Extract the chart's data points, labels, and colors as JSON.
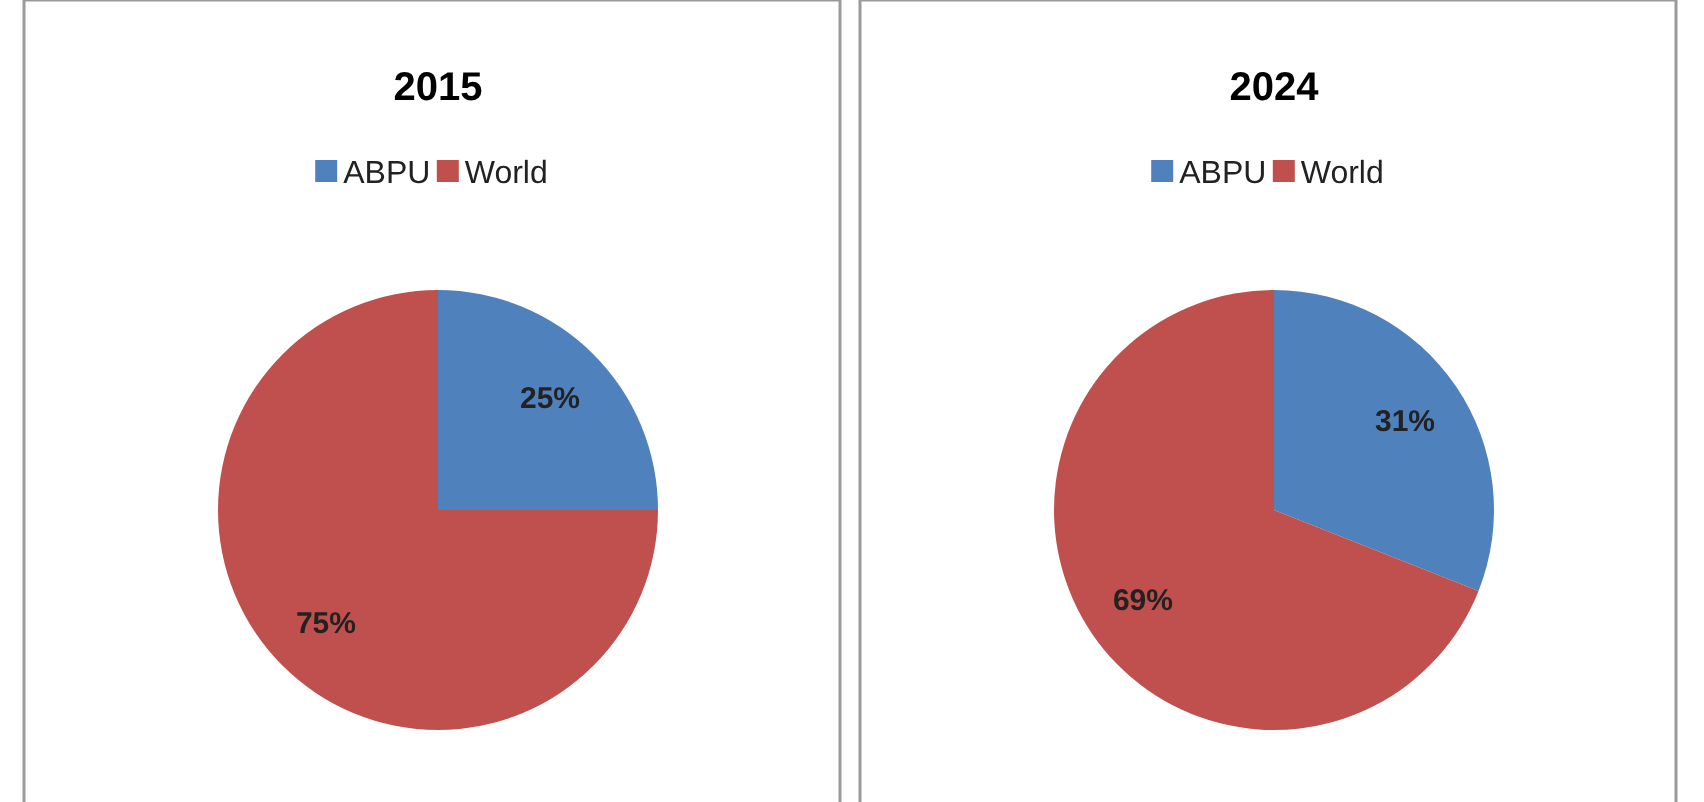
{
  "chart_data": [
    {
      "type": "pie",
      "title": "2015",
      "categories": [
        "ABPU",
        "World"
      ],
      "values": [
        25,
        75
      ],
      "colors": [
        "#4f81bd",
        "#c0504d"
      ],
      "value_labels": [
        "25%",
        "75%"
      ],
      "legend": "top"
    },
    {
      "type": "pie",
      "title": "2024",
      "categories": [
        "ABPU",
        "World"
      ],
      "values": [
        31,
        69
      ],
      "colors": [
        "#4f81bd",
        "#c0504d"
      ],
      "value_labels": [
        "31%",
        "69%"
      ],
      "legend": "top"
    }
  ]
}
